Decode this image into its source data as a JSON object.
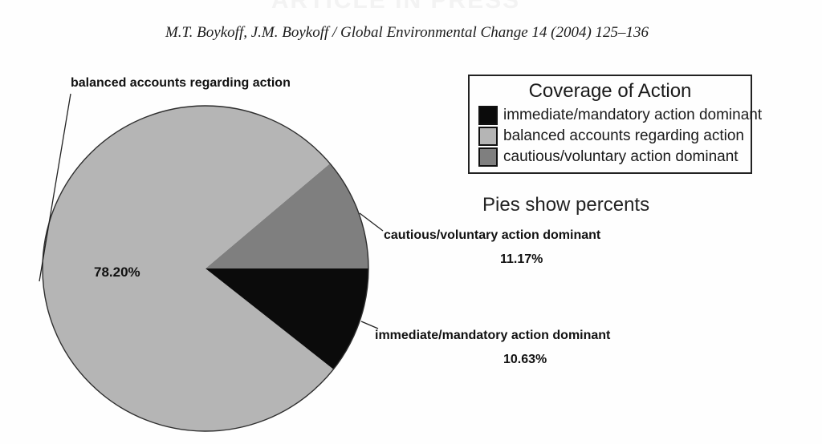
{
  "banner": {
    "text": "ARTICLE IN PRESS"
  },
  "citation": "M.T. Boykoff, J.M. Boykoff / Global Environmental Change 14 (2004) 125–136",
  "chart_note": "Pies show percents",
  "legend": {
    "title": "Coverage of Action",
    "items": [
      {
        "label": "immediate/mandatory action dominant",
        "color": "#0b0b0b"
      },
      {
        "label": "balanced accounts regarding action",
        "color": "#b5b5b5"
      },
      {
        "label": "cautious/voluntary action dominant",
        "color": "#7f7f7f"
      }
    ]
  },
  "callouts": {
    "balanced": {
      "label": "balanced accounts regarding action",
      "percent_label": "78.20%"
    },
    "cautious": {
      "label": "cautious/voluntary action dominant",
      "percent_label": "11.17%"
    },
    "immediate": {
      "label": "immediate/mandatory action dominant",
      "percent_label": "10.63%"
    }
  },
  "chart_data": {
    "type": "pie",
    "title": "Coverage of Action",
    "note": "Pies show percents",
    "unit": "percent",
    "start_angle_deg": 0,
    "direction": "counterclockwise",
    "slices": [
      {
        "id": "cautious",
        "label": "cautious/voluntary action dominant",
        "value": 11.17,
        "color": "#7f7f7f"
      },
      {
        "id": "balanced",
        "label": "balanced accounts regarding action",
        "value": 78.2,
        "color": "#b5b5b5"
      },
      {
        "id": "immediate",
        "label": "immediate/mandatory action dominant",
        "value": 10.63,
        "color": "#0b0b0b"
      }
    ]
  }
}
